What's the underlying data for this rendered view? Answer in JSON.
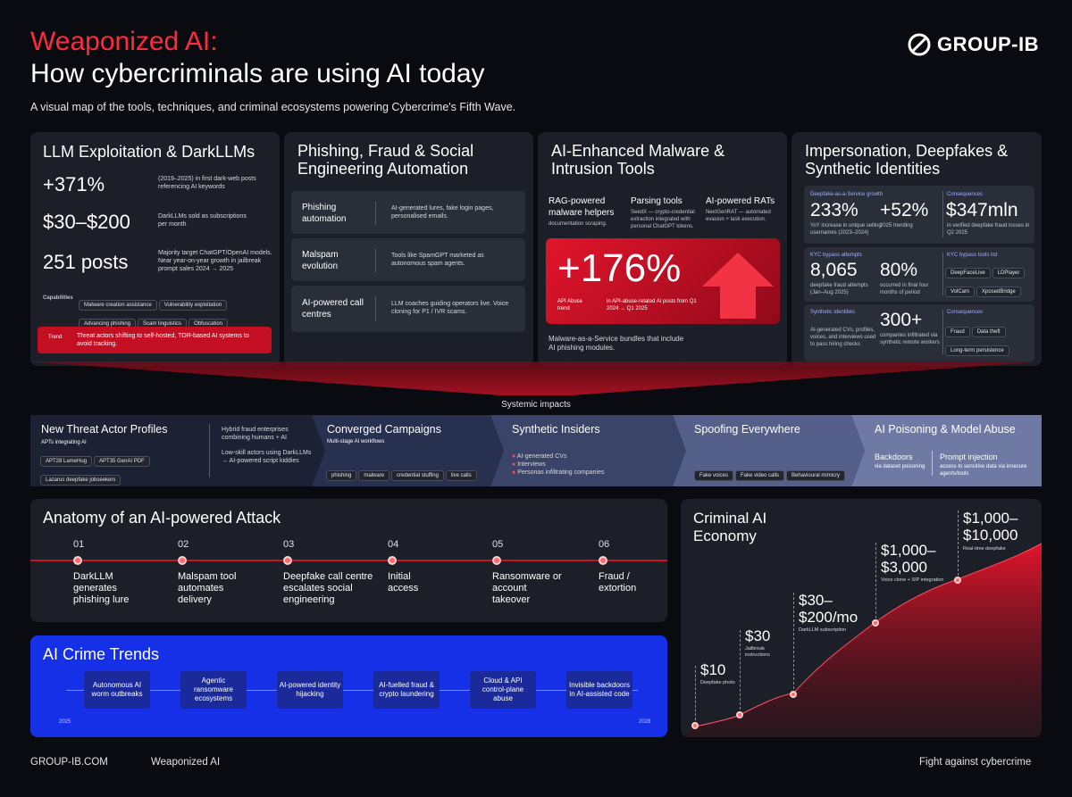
{
  "header": {
    "title_red": "Weaponized AI:",
    "title_white": "How cybercriminals are using AI today",
    "subtitle": "A visual map of the tools, techniques, and criminal ecosystems powering Cybercrime's Fifth Wave.",
    "logo": "GROUP-IB"
  },
  "llm": {
    "title": "LLM Exploitation & DarkLLMs",
    "stats": [
      {
        "value": "+371%",
        "desc": "(2019–2025) in first dark-web posts referencing AI keywords"
      },
      {
        "value": "$30–$200",
        "desc": "DarkLLMs sold as subscriptions per month"
      },
      {
        "value": "251 posts",
        "desc": "Majority target ChatGPT/OpenAI models. Near year-on-year growth in jailbreak prompt sales 2024 → 2025"
      }
    ],
    "capabilities_label": "Capabilities",
    "capabilities": [
      "Malware creation assistance",
      "Vulnerability exploitation",
      "Advancing phishing",
      "Scam linguistics",
      "Obfuscation"
    ],
    "trend_label": "Trend",
    "trend_text": "Threat actors shifting to self-hosted, TOR-based AI systems to avoid tracking."
  },
  "phishing": {
    "title": "Phishing, Fraud & Social Engineering Automation",
    "rows": [
      {
        "label": "Phishing automation",
        "desc": "AI-generated lures, fake login pages, personalised emails."
      },
      {
        "label": "Malspam evolution",
        "desc": "Tools like SpamGPT marketed as autonomous spam agents."
      },
      {
        "label": "AI-powered call centres",
        "desc": "LLM coaches guiding operators live. Voice cloning for P1 / IVR scams."
      }
    ]
  },
  "malware": {
    "title": "AI-Enhanced Malware & Intrusion Tools",
    "cols": [
      {
        "title": "RAG-powered malware helpers",
        "desc": "documentation scraping."
      },
      {
        "title": "Parsing tools",
        "desc": "SeedX — crypto-credential extraction integrated with personal ChatGPT tokens."
      },
      {
        "title": "AI-powered RATs",
        "desc": "NextGenRAT — automated evasion + task execution."
      }
    ],
    "big_value": "+176%",
    "big_label": "API Abuse trend",
    "big_desc": "in API-abuse-related AI posts from Q1 2024 → Q1 2025",
    "footer": "Malware-as-a-Service bundles that include AI phishing modules."
  },
  "imperson": {
    "title": "Impersonation, Deepfakes & Synthetic Identities",
    "dfaas_label": "Deepfake-as-a-Service growth",
    "dfaas": [
      {
        "value": "233%",
        "desc": "YoY increase in unique selling usernames (2023–2024)"
      },
      {
        "value": "+52%",
        "desc": "2025 trending"
      }
    ],
    "consequences_label": "Consequences",
    "loss_value": "$347mln",
    "loss_desc": "in verified deepfake fraud losses in Q2 2025",
    "kyc_label": "KYC bypass attempts",
    "kyc": [
      {
        "value": "8,065",
        "desc": "deepfake fraud attempts (Jan–Aug 2025)"
      },
      {
        "value": "80%",
        "desc": "occurred in final four months of period"
      }
    ],
    "kyc_tools_label": "KYC bypass tools list",
    "kyc_tools": [
      "DeepFaceLive",
      "LDPlayer",
      "VolCam",
      "XposedBridge"
    ],
    "synth_label": "Synthetic identities",
    "synth_desc": "AI-generated CVs, profiles, voices, and interviews used to pass hiring checks",
    "synth_value": "300+",
    "synth_value_desc": "companies infiltrated via synthetic remote workers",
    "consequences2_label": "Consequences",
    "consequences2": [
      "Fraud",
      "Data theft",
      "Long-term persistence"
    ]
  },
  "systemic": {
    "label": "Systemic impacts",
    "profiles": {
      "title": "New Threat Actor Profiles",
      "apts_label": "APTs integrating AI",
      "apts": [
        "APT28 LameHug",
        "APT35 GenAI PDF",
        "Lazarus deepfake jobseekers"
      ],
      "point1": "Hybrid fraud enterprises combining humans + AI",
      "point2": "Low-skill actors using DarkLLMs → AI-powered script kiddies"
    },
    "converged": {
      "title": "Converged Campaigns",
      "sub": "Multi-stage AI workflows",
      "chips": [
        "phishing",
        "malware",
        "credential stuffing",
        "live calls"
      ]
    },
    "insiders": {
      "title": "Synthetic Insiders",
      "items": [
        "AI-generated CVs",
        "Interviews",
        "Personas infiltrating companies"
      ]
    },
    "spoofing": {
      "title": "Spoofing Everywhere",
      "chips": [
        "Fake voices",
        "Fake video calls",
        "Behavioural mimicry"
      ]
    },
    "poisoning": {
      "title": "AI Poisoning & Model Abuse",
      "c1_title": "Backdoors",
      "c1_desc": "via dataset poisoning",
      "c2_title": "Prompt injection",
      "c2_desc": "access to sensitive data via insecure agents/tools"
    }
  },
  "anatomy": {
    "title": "Anatomy of an AI-powered Attack",
    "steps": [
      {
        "num": "01",
        "text": "DarkLLM generates phishing lure"
      },
      {
        "num": "02",
        "text": "Malspam tool automates delivery"
      },
      {
        "num": "03",
        "text": "Deepfake call centre escalates social engineering"
      },
      {
        "num": "04",
        "text": "Initial access"
      },
      {
        "num": "05",
        "text": "Ransomware or account takeover"
      },
      {
        "num": "06",
        "text": "Fraud / extortion"
      }
    ]
  },
  "trends": {
    "title": "AI Crime Trends",
    "start": "2025",
    "end": "2028",
    "items": [
      "Autonomous AI worm outbreaks",
      "Agentic ransomware ecosystems",
      "AI-powered identity hijacking",
      "AI-fuelled fraud & crypto laundering",
      "Cloud & API control-plane abuse",
      "Invisible backdoors in AI-assisted code"
    ]
  },
  "economy": {
    "title": "Criminal AI Economy",
    "points": [
      {
        "price": "$10",
        "label": "Deepfake photo"
      },
      {
        "price": "$30",
        "label": "Jailbreak instructions"
      },
      {
        "price": "$30–$200/mo",
        "label": "DarkLLM subscription"
      },
      {
        "price": "$1,000–$3,000",
        "label": "Voice clone + SIP integration"
      },
      {
        "price": "$1,000–$10,000",
        "label": "Real-time deepfake"
      }
    ]
  },
  "footer": {
    "site": "GROUP-IB.COM",
    "topic": "Weaponized AI",
    "tagline": "Fight against cybercrime"
  },
  "colors": {
    "accent_red": "#e3142b",
    "trend_blue": "#1530e6",
    "background": "#0a0b10"
  }
}
